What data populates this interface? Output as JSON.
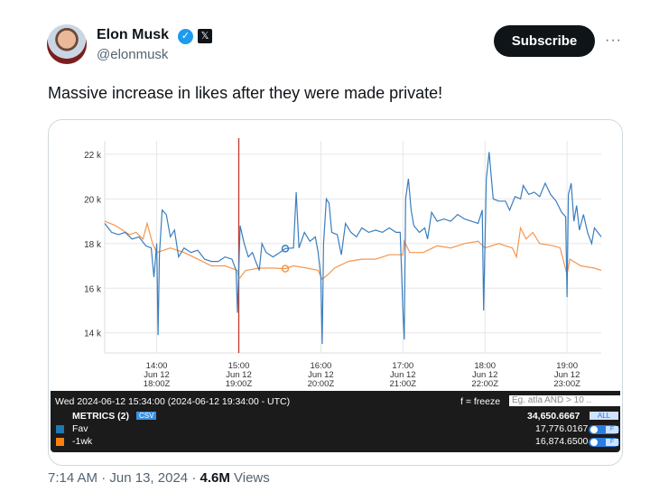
{
  "author": {
    "name": "Elon Musk",
    "handle": "@elonmusk",
    "verified_icon": "verified-badge-icon",
    "affiliation_icon": "x-logo-icon"
  },
  "subscribe_label": "Subscribe",
  "more_label": "···",
  "tweet_text": "Massive increase in likes after they were made private!",
  "footer": {
    "time": "7:14 AM",
    "date": "Jun 13, 2024",
    "views": "4.6M",
    "views_label": "Views",
    "sep": "·"
  },
  "legend": {
    "timestamp": "Wed 2024-06-12 15:34:00 (2024-06-12 19:34:00 - UTC)",
    "freeze": "f = freeze",
    "filter_placeholder": "Eg. atla AND > 10 ..",
    "metrics_label": "METRICS (2)",
    "csv": "CSV",
    "total": "34,650.6667",
    "all": "ALL",
    "toggle_label": "F",
    "series": [
      {
        "name": "Fav",
        "value": "17,776.0167",
        "color": "#1f77b4"
      },
      {
        "name": "-1wk",
        "value": "16,874.6500",
        "color": "#ff7f0e"
      }
    ]
  },
  "chart_data": {
    "type": "line",
    "y_ticks": [
      "22 k",
      "20 k",
      "18 k",
      "16 k",
      "14 k"
    ],
    "y_tick_values": [
      22000,
      20000,
      18000,
      16000,
      14000
    ],
    "ylim": [
      13100,
      22600
    ],
    "xlim": [
      "13:22",
      "19:25"
    ],
    "x_ticks": [
      {
        "time": "14:00",
        "l1": "14:00",
        "l2": "Jun 12",
        "l3": "18:00Z"
      },
      {
        "time": "15:00",
        "l1": "15:00",
        "l2": "Jun 12",
        "l3": "19:00Z"
      },
      {
        "time": "16:00",
        "l1": "16:00",
        "l2": "Jun 12",
        "l3": "20:00Z"
      },
      {
        "time": "17:00",
        "l1": "17:00",
        "l2": "Jun 12",
        "l3": "21:00Z"
      },
      {
        "time": "18:00",
        "l1": "18:00",
        "l2": "Jun 12",
        "l3": "22:00Z"
      },
      {
        "time": "19:00",
        "l1": "19:00",
        "l2": "Jun 12",
        "l3": "23:00Z"
      }
    ],
    "grid": true,
    "marker_line": "15:00",
    "marker_line_color": "#c0392b",
    "hover_time": "15:34",
    "series": [
      {
        "name": "Fav",
        "color": "#3a7dbf",
        "points": [
          [
            "13:22",
            18900
          ],
          [
            "13:27",
            18500
          ],
          [
            "13:32",
            18400
          ],
          [
            "13:37",
            18500
          ],
          [
            "13:42",
            18200
          ],
          [
            "13:47",
            18300
          ],
          [
            "13:52",
            17900
          ],
          [
            "13:56",
            17800
          ],
          [
            "13:58",
            16500
          ],
          [
            "14:00",
            18000
          ],
          [
            "14:01",
            13900
          ],
          [
            "14:02",
            17500
          ],
          [
            "14:04",
            19500
          ],
          [
            "14:07",
            19300
          ],
          [
            "14:10",
            18300
          ],
          [
            "14:13",
            18600
          ],
          [
            "14:16",
            17400
          ],
          [
            "14:20",
            17800
          ],
          [
            "14:25",
            17600
          ],
          [
            "14:30",
            17700
          ],
          [
            "14:35",
            17300
          ],
          [
            "14:40",
            17200
          ],
          [
            "14:45",
            17200
          ],
          [
            "14:50",
            17400
          ],
          [
            "14:55",
            17300
          ],
          [
            "14:58",
            16800
          ],
          [
            "14:59",
            14900
          ],
          [
            "15:01",
            18800
          ],
          [
            "15:04",
            18000
          ],
          [
            "15:07",
            17400
          ],
          [
            "15:10",
            17600
          ],
          [
            "15:13",
            17100
          ],
          [
            "15:15",
            16800
          ],
          [
            "15:17",
            18000
          ],
          [
            "15:20",
            17600
          ],
          [
            "15:25",
            17400
          ],
          [
            "15:30",
            17600
          ],
          [
            "15:34",
            17776
          ],
          [
            "15:40",
            17800
          ],
          [
            "15:42",
            20300
          ],
          [
            "15:44",
            17800
          ],
          [
            "15:48",
            18500
          ],
          [
            "15:52",
            18100
          ],
          [
            "15:56",
            18300
          ],
          [
            "15:58",
            17600
          ],
          [
            "16:00",
            16500
          ],
          [
            "16:01",
            13500
          ],
          [
            "16:02",
            18000
          ],
          [
            "16:04",
            20000
          ],
          [
            "16:06",
            19800
          ],
          [
            "16:08",
            18500
          ],
          [
            "16:12",
            18400
          ],
          [
            "16:15",
            17500
          ],
          [
            "16:18",
            18900
          ],
          [
            "16:22",
            18500
          ],
          [
            "16:26",
            18300
          ],
          [
            "16:30",
            18700
          ],
          [
            "16:35",
            18500
          ],
          [
            "16:40",
            18600
          ],
          [
            "16:45",
            18500
          ],
          [
            "16:50",
            18700
          ],
          [
            "16:55",
            18500
          ],
          [
            "16:58",
            18500
          ],
          [
            "17:00",
            15000
          ],
          [
            "17:01",
            13700
          ],
          [
            "17:02",
            20000
          ],
          [
            "17:04",
            20900
          ],
          [
            "17:06",
            19500
          ],
          [
            "17:08",
            18800
          ],
          [
            "17:12",
            18500
          ],
          [
            "17:16",
            18700
          ],
          [
            "17:18",
            18200
          ],
          [
            "17:21",
            19400
          ],
          [
            "17:25",
            19000
          ],
          [
            "17:30",
            19100
          ],
          [
            "17:35",
            19000
          ],
          [
            "17:40",
            19300
          ],
          [
            "17:45",
            19100
          ],
          [
            "17:50",
            19000
          ],
          [
            "17:55",
            18900
          ],
          [
            "17:58",
            19500
          ],
          [
            "17:59",
            15000
          ],
          [
            "18:01",
            20900
          ],
          [
            "18:03",
            22100
          ],
          [
            "18:06",
            20000
          ],
          [
            "18:10",
            19900
          ],
          [
            "18:15",
            19900
          ],
          [
            "18:18",
            19500
          ],
          [
            "18:22",
            20100
          ],
          [
            "18:26",
            20000
          ],
          [
            "18:28",
            20600
          ],
          [
            "18:32",
            20200
          ],
          [
            "18:36",
            20300
          ],
          [
            "18:40",
            20100
          ],
          [
            "18:44",
            20700
          ],
          [
            "18:48",
            20200
          ],
          [
            "18:52",
            19900
          ],
          [
            "18:56",
            19400
          ],
          [
            "18:59",
            19200
          ],
          [
            "19:00",
            15600
          ],
          [
            "19:01",
            20200
          ],
          [
            "19:03",
            20700
          ],
          [
            "19:05",
            19000
          ],
          [
            "19:07",
            19700
          ],
          [
            "19:09",
            18600
          ],
          [
            "19:12",
            19300
          ],
          [
            "19:15",
            18500
          ],
          [
            "19:18",
            18000
          ],
          [
            "19:20",
            18700
          ],
          [
            "19:25",
            18300
          ]
        ]
      },
      {
        "name": "-1wk",
        "color": "#f5964f",
        "points": [
          [
            "13:22",
            19000
          ],
          [
            "13:30",
            18800
          ],
          [
            "13:40",
            18400
          ],
          [
            "13:45",
            18500
          ],
          [
            "13:50",
            18200
          ],
          [
            "13:53",
            18900
          ],
          [
            "13:57",
            18000
          ],
          [
            "14:00",
            17600
          ],
          [
            "14:10",
            17800
          ],
          [
            "14:20",
            17600
          ],
          [
            "14:30",
            17300
          ],
          [
            "14:40",
            17000
          ],
          [
            "14:50",
            17000
          ],
          [
            "14:59",
            16800
          ],
          [
            "15:00",
            16400
          ],
          [
            "15:05",
            16800
          ],
          [
            "15:15",
            16900
          ],
          [
            "15:25",
            16900
          ],
          [
            "15:34",
            16875
          ],
          [
            "15:40",
            17000
          ],
          [
            "15:50",
            16900
          ],
          [
            "15:58",
            16800
          ],
          [
            "16:01",
            16400
          ],
          [
            "16:05",
            16600
          ],
          [
            "16:10",
            16900
          ],
          [
            "16:20",
            17200
          ],
          [
            "16:30",
            17300
          ],
          [
            "16:40",
            17300
          ],
          [
            "16:50",
            17500
          ],
          [
            "17:00",
            17500
          ],
          [
            "17:01",
            18100
          ],
          [
            "17:05",
            17600
          ],
          [
            "17:15",
            17600
          ],
          [
            "17:25",
            17900
          ],
          [
            "17:35",
            17800
          ],
          [
            "17:45",
            18000
          ],
          [
            "17:55",
            18100
          ],
          [
            "18:00",
            17800
          ],
          [
            "18:10",
            18000
          ],
          [
            "18:20",
            17800
          ],
          [
            "18:23",
            17400
          ],
          [
            "18:26",
            18700
          ],
          [
            "18:30",
            18200
          ],
          [
            "18:35",
            18500
          ],
          [
            "18:40",
            18000
          ],
          [
            "18:50",
            17900
          ],
          [
            "18:55",
            17800
          ],
          [
            "19:00",
            16600
          ],
          [
            "19:02",
            17300
          ],
          [
            "19:10",
            17000
          ],
          [
            "19:20",
            16900
          ],
          [
            "19:25",
            16800
          ]
        ]
      }
    ]
  }
}
